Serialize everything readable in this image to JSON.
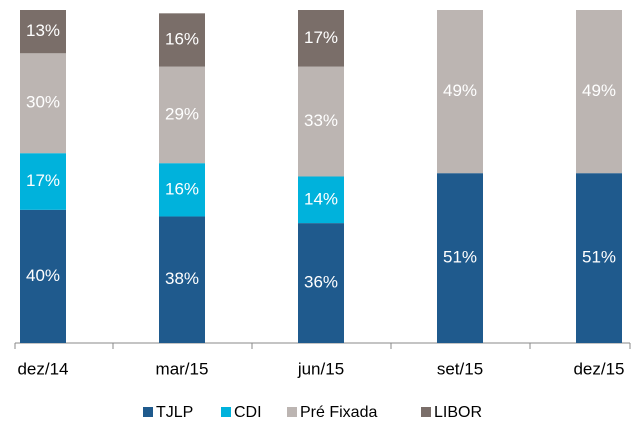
{
  "chart_data": {
    "type": "stacked_bar",
    "categories": [
      "dez/14",
      "mar/15",
      "jun/15",
      "set/15",
      "dez/15"
    ],
    "series": [
      {
        "name": "TJLP",
        "color": "#1f5a8d",
        "values": [
          40,
          38,
          36,
          51,
          51
        ],
        "value_labels": [
          "40%",
          "38%",
          "36%",
          "51%",
          "51%"
        ]
      },
      {
        "name": "CDI",
        "color": "#00b2dc",
        "values": [
          17,
          16,
          14,
          null,
          null
        ],
        "value_labels": [
          "17%",
          "16%",
          "14%",
          null,
          null
        ]
      },
      {
        "name": "Pré Fixada",
        "color": "#bcb5b2",
        "values": [
          30,
          29,
          33,
          49,
          49
        ],
        "value_labels": [
          "30%",
          "29%",
          "33%",
          "49%",
          "49%"
        ]
      },
      {
        "name": "LIBOR",
        "color": "#7a6e69",
        "values": [
          13,
          16,
          17,
          null,
          null
        ],
        "value_labels": [
          "13%",
          "16%",
          "17%",
          null,
          null
        ]
      }
    ],
    "ylim": [
      0,
      100
    ]
  }
}
